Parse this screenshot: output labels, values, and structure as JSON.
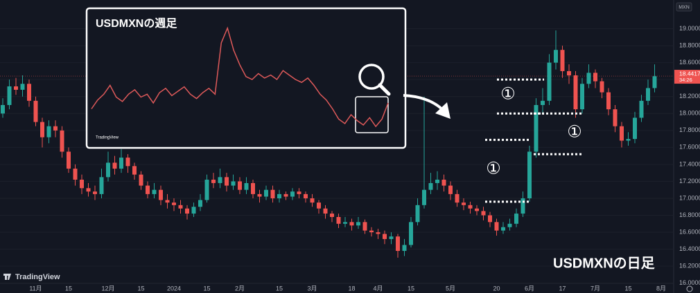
{
  "chart_data": [
    {
      "type": "candlestick",
      "title": "USDMXNの日足",
      "currency": "MXN",
      "watermark": "TradingView",
      "up_color": "#26a69a",
      "down_color": "#ef5350",
      "categories": [
        null,
        null,
        null,
        null,
        null,
        "11月",
        null,
        null,
        null,
        null,
        "15",
        null,
        null,
        null,
        null,
        null,
        "12月",
        null,
        null,
        null,
        null,
        "15",
        null,
        null,
        null,
        null,
        "2024",
        null,
        null,
        null,
        null,
        "15",
        null,
        null,
        null,
        null,
        "2月",
        null,
        null,
        null,
        null,
        null,
        "15",
        null,
        null,
        null,
        null,
        "3月",
        null,
        null,
        null,
        null,
        null,
        "18",
        null,
        null,
        null,
        "4月",
        null,
        null,
        null,
        null,
        "15",
        null,
        null,
        null,
        null,
        null,
        "5月",
        null,
        null,
        null,
        null,
        null,
        null,
        "20",
        null,
        null,
        null,
        null,
        "6月",
        null,
        null,
        null,
        null,
        "17",
        null,
        null,
        null,
        null,
        "7月",
        null,
        null,
        null,
        null,
        "15",
        null,
        null,
        null,
        null,
        "8月"
      ],
      "open": [
        18.0,
        18.1,
        18.32,
        18.28,
        18.35,
        18.15,
        17.9,
        17.72,
        17.85,
        17.8,
        17.55,
        17.35,
        17.22,
        17.12,
        17.08,
        17.05,
        17.25,
        17.42,
        17.35,
        17.48,
        17.38,
        17.28,
        17.15,
        17.05,
        17.1,
        16.98,
        16.95,
        16.92,
        16.88,
        16.82,
        16.9,
        16.98,
        17.22,
        17.18,
        17.25,
        17.15,
        17.2,
        17.1,
        17.18,
        17.05,
        17.02,
        17.1,
        17.0,
        17.05,
        17.02,
        17.08,
        17.05,
        17.0,
        16.95,
        16.88,
        16.82,
        16.78,
        16.7,
        16.72,
        16.68,
        16.72,
        16.62,
        16.6,
        16.58,
        16.52,
        16.55,
        16.38,
        16.45,
        16.72,
        16.92,
        17.1,
        17.18,
        17.22,
        17.15,
        17.05,
        16.95,
        16.92,
        16.88,
        16.85,
        16.8,
        16.72,
        16.62,
        16.66,
        16.7,
        16.82,
        17.0,
        17.55,
        18.1,
        18.15,
        18.6,
        18.75,
        18.5,
        18.45,
        18.05,
        18.35,
        18.48,
        18.38,
        18.25,
        18.05,
        17.85,
        17.68,
        17.7,
        17.95,
        18.15,
        18.3,
        null
      ],
      "high": [
        18.18,
        18.4,
        18.42,
        18.45,
        18.4,
        18.2,
        17.95,
        17.92,
        17.92,
        17.85,
        17.6,
        17.4,
        17.28,
        17.18,
        17.15,
        17.35,
        17.55,
        17.5,
        17.58,
        17.52,
        17.42,
        17.32,
        17.2,
        17.18,
        17.15,
        17.05,
        17.0,
        16.98,
        16.92,
        16.95,
        17.05,
        17.28,
        17.3,
        17.35,
        17.3,
        17.28,
        17.25,
        17.25,
        17.22,
        17.1,
        17.15,
        17.15,
        17.1,
        17.08,
        17.12,
        17.12,
        17.08,
        17.05,
        16.98,
        16.92,
        16.85,
        16.82,
        16.78,
        16.76,
        16.78,
        16.75,
        16.66,
        16.64,
        16.62,
        16.6,
        16.58,
        16.52,
        16.78,
        17.0,
        18.2,
        17.3,
        17.32,
        17.28,
        17.2,
        17.1,
        17.0,
        16.96,
        16.92,
        16.9,
        16.84,
        16.76,
        16.72,
        16.76,
        16.88,
        17.08,
        17.62,
        18.18,
        18.3,
        18.7,
        18.98,
        18.8,
        18.58,
        18.5,
        18.42,
        18.58,
        18.52,
        18.42,
        18.3,
        18.1,
        17.9,
        17.78,
        18.02,
        18.22,
        18.4,
        18.58,
        null
      ],
      "low": [
        17.95,
        18.05,
        18.22,
        18.2,
        18.08,
        17.85,
        17.6,
        17.65,
        17.72,
        17.48,
        17.3,
        17.15,
        17.05,
        17.02,
        16.98,
        17.0,
        17.2,
        17.28,
        17.3,
        17.3,
        17.22,
        17.1,
        17.0,
        17.0,
        16.92,
        16.88,
        16.85,
        16.82,
        16.75,
        16.78,
        16.85,
        16.95,
        17.12,
        17.12,
        17.08,
        17.1,
        17.05,
        17.05,
        17.0,
        16.95,
        16.98,
        16.95,
        16.95,
        16.98,
        16.98,
        17.0,
        16.95,
        16.9,
        16.82,
        16.76,
        16.72,
        16.65,
        16.66,
        16.62,
        16.64,
        16.58,
        16.55,
        16.52,
        16.46,
        16.46,
        16.3,
        16.32,
        16.42,
        16.68,
        16.88,
        17.05,
        17.1,
        17.08,
        16.98,
        16.9,
        16.86,
        16.82,
        16.8,
        16.74,
        16.66,
        16.56,
        16.58,
        16.62,
        16.66,
        16.78,
        16.96,
        17.48,
        18.0,
        18.1,
        18.52,
        18.42,
        18.35,
        17.95,
        18.0,
        18.3,
        18.3,
        18.18,
        17.98,
        17.78,
        17.6,
        17.62,
        17.65,
        17.9,
        18.1,
        18.25,
        null
      ],
      "close": [
        18.1,
        18.32,
        18.28,
        18.35,
        18.15,
        17.9,
        17.72,
        17.85,
        17.8,
        17.55,
        17.35,
        17.22,
        17.12,
        17.08,
        17.05,
        17.25,
        17.42,
        17.35,
        17.48,
        17.38,
        17.28,
        17.15,
        17.05,
        17.1,
        16.98,
        16.95,
        16.92,
        16.88,
        16.82,
        16.9,
        16.98,
        17.22,
        17.18,
        17.25,
        17.15,
        17.2,
        17.1,
        17.18,
        17.05,
        17.02,
        17.1,
        17.0,
        17.05,
        17.02,
        17.08,
        17.05,
        17.0,
        16.95,
        16.88,
        16.82,
        16.78,
        16.7,
        16.72,
        16.68,
        16.72,
        16.62,
        16.6,
        16.58,
        16.52,
        16.55,
        16.38,
        16.45,
        16.72,
        16.92,
        17.1,
        17.18,
        17.22,
        17.15,
        17.05,
        16.95,
        16.92,
        16.88,
        16.85,
        16.8,
        16.72,
        16.62,
        16.66,
        16.7,
        16.82,
        17.0,
        17.55,
        18.1,
        18.15,
        18.6,
        18.75,
        18.5,
        18.45,
        18.05,
        18.35,
        18.48,
        18.38,
        18.25,
        18.05,
        17.85,
        17.68,
        17.7,
        17.95,
        18.15,
        18.3,
        18.44,
        null
      ],
      "ylim": [
        15.9,
        19.2
      ],
      "yticks": [
        {
          "value": 16,
          "label": "16.00000"
        },
        {
          "value": 16.2,
          "label": "16.20000"
        },
        {
          "value": 16.4,
          "label": "16.40000"
        },
        {
          "value": 16.6,
          "label": "16.60000"
        },
        {
          "value": 16.8,
          "label": "16.80000"
        },
        {
          "value": 17,
          "label": "17.00000"
        },
        {
          "value": 17.2,
          "label": "17.20000"
        },
        {
          "value": 17.4,
          "label": "17.40000"
        },
        {
          "value": 17.6,
          "label": "17.60000"
        },
        {
          "value": 17.8,
          "label": "17.80000"
        },
        {
          "value": 18,
          "label": "18.00000"
        },
        {
          "value": 18.2,
          "label": "18.20000"
        },
        {
          "value": 18.4,
          "label": "18.40000"
        },
        {
          "value": 18.6,
          "label": "18.60000"
        },
        {
          "value": 18.8,
          "label": "18.80000"
        },
        {
          "value": 19,
          "label": "19.00000"
        }
      ],
      "grid": true,
      "last_price": {
        "value": 18.4417,
        "label": "18.44170"
      },
      "countdown": "34:26",
      "ranges": [
        {
          "label": "①",
          "from": 16.96,
          "to": 17.69
        },
        {
          "label": "①",
          "from": 18.0,
          "to": 18.4
        },
        {
          "label": "①",
          "from": 17.52,
          "to": 18.0
        }
      ]
    },
    {
      "type": "line",
      "title": "USDMXNの週足",
      "watermark": "TradingView",
      "color": "#e05a5a",
      "values": [
        18.0,
        18.6,
        19.0,
        19.6,
        18.8,
        18.5,
        19.0,
        19.3,
        18.8,
        19.0,
        18.4,
        19.1,
        19.4,
        18.9,
        19.2,
        19.5,
        19.0,
        18.7,
        19.1,
        19.4,
        19.0,
        22.5,
        23.5,
        22.0,
        21.0,
        20.2,
        20.0,
        20.4,
        20.1,
        20.3,
        20.0,
        20.6,
        20.3,
        20.0,
        19.8,
        20.1,
        19.6,
        19.0,
        18.6,
        18.0,
        17.3,
        17.0,
        17.6,
        17.2,
        16.9,
        17.4,
        16.8,
        17.3,
        18.4
      ],
      "ylim": [
        16,
        24
      ]
    }
  ]
}
